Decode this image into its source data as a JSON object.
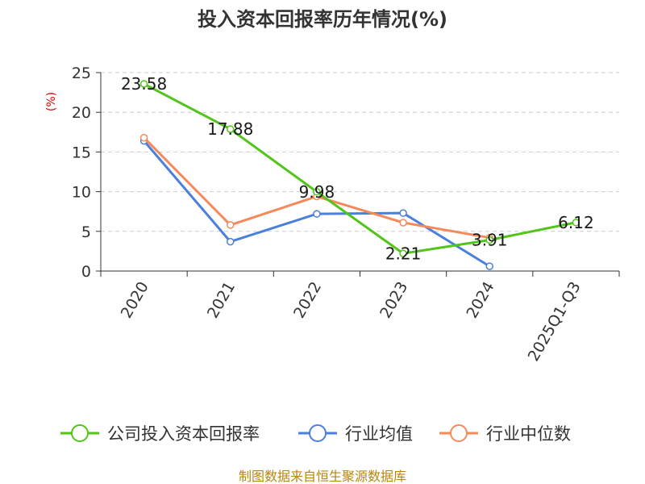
{
  "chart_data": {
    "type": "line",
    "title": "投入资本回报率历年情况(%)",
    "ylabel": "(%)",
    "xlabel": "",
    "ylim": [
      0,
      25
    ],
    "yticks": [
      0,
      5,
      10,
      15,
      20,
      25
    ],
    "grid": "horizontal-dashed",
    "legend_position": "bottom",
    "categories": [
      "2020",
      "2021",
      "2022",
      "2023",
      "2024",
      "2025Q1-Q3"
    ],
    "series": [
      {
        "name": "公司投入资本回报率",
        "color": "#52c41a",
        "values": [
          23.58,
          17.88,
          9.98,
          2.21,
          3.91,
          6.12
        ],
        "labels": [
          "23.58",
          "17.88",
          "9.98",
          "2.21",
          "3.91",
          "6.12"
        ]
      },
      {
        "name": "行业均值",
        "color": "#4a7fdc",
        "values": [
          16.4,
          3.7,
          7.2,
          7.3,
          0.6,
          null
        ]
      },
      {
        "name": "行业中位数",
        "color": "#f5895a",
        "values": [
          16.8,
          5.8,
          9.4,
          6.1,
          4.2,
          null
        ]
      }
    ]
  },
  "source": "制图数据来自恒生聚源数据库"
}
